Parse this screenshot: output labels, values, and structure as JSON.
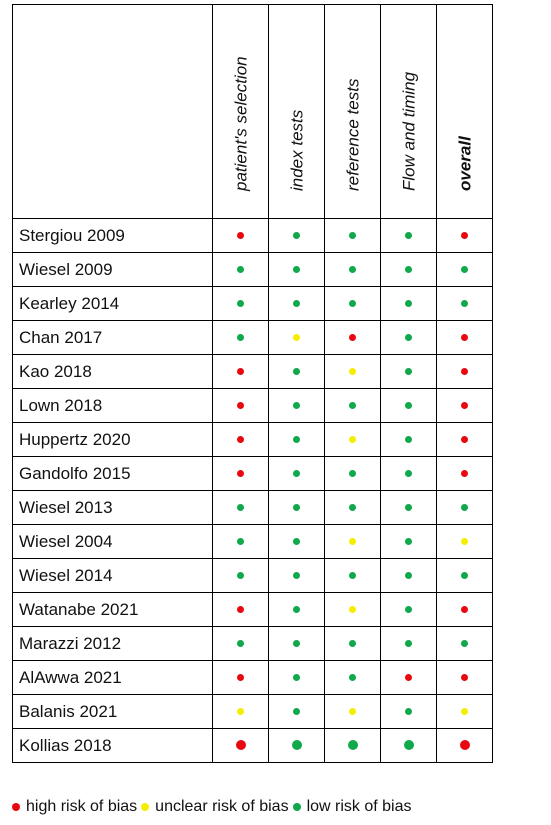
{
  "colors": {
    "high": "#e8090f",
    "unclear": "#f5ee00",
    "low": "#0fa84a"
  },
  "table": {
    "corner": "",
    "columns": [
      {
        "key": "patients_selection",
        "label": "patient's selection",
        "bold": false
      },
      {
        "key": "index_tests",
        "label": "index tests",
        "bold": false
      },
      {
        "key": "reference_tests",
        "label": "reference tests",
        "bold": false
      },
      {
        "key": "flow_timing",
        "label": "Flow and timing",
        "bold": false
      },
      {
        "key": "overall",
        "label": "overall",
        "bold": true
      }
    ],
    "rows": [
      {
        "study": "Stergiou 2009",
        "ratings": [
          "high",
          "low",
          "low",
          "low",
          "high"
        ]
      },
      {
        "study": "Wiesel 2009",
        "ratings": [
          "low",
          "low",
          "low",
          "low",
          "low"
        ]
      },
      {
        "study": "Kearley 2014",
        "ratings": [
          "low",
          "low",
          "low",
          "low",
          "low"
        ]
      },
      {
        "study": "Chan 2017",
        "ratings": [
          "low",
          "unclear",
          "high",
          "low",
          "high"
        ]
      },
      {
        "study": "Kao 2018",
        "ratings": [
          "high",
          "low",
          "unclear",
          "low",
          "high"
        ]
      },
      {
        "study": "Lown 2018",
        "ratings": [
          "high",
          "low",
          "low",
          "low",
          "high"
        ]
      },
      {
        "study": "Huppertz 2020",
        "ratings": [
          "high",
          "low",
          "unclear",
          "low",
          "high"
        ]
      },
      {
        "study": "Gandolfo 2015",
        "ratings": [
          "high",
          "low",
          "low",
          "low",
          "high"
        ]
      },
      {
        "study": "Wiesel 2013",
        "ratings": [
          "low",
          "low",
          "low",
          "low",
          "low"
        ]
      },
      {
        "study": "Wiesel 2004",
        "ratings": [
          "low",
          "low",
          "unclear",
          "low",
          "unclear"
        ]
      },
      {
        "study": "Wiesel 2014",
        "ratings": [
          "low",
          "low",
          "low",
          "low",
          "low"
        ]
      },
      {
        "study": "Watanabe 2021",
        "ratings": [
          "high",
          "low",
          "unclear",
          "low",
          "high"
        ]
      },
      {
        "study": "Marazzi 2012",
        "ratings": [
          "low",
          "low",
          "low",
          "low",
          "low"
        ]
      },
      {
        "study": "AlAwwa 2021",
        "ratings": [
          "high",
          "low",
          "low",
          "high",
          "high"
        ]
      },
      {
        "study": "Balanis 2021",
        "ratings": [
          "unclear",
          "low",
          "unclear",
          "low",
          "unclear"
        ]
      },
      {
        "study": "Kollias 2018",
        "ratings": [
          "high",
          "low",
          "low",
          "low",
          "high"
        ],
        "large_dots": true
      }
    ]
  },
  "legend": [
    {
      "rating": "high",
      "label": "high risk of bias"
    },
    {
      "rating": "unclear",
      "label": "unclear risk of bias"
    },
    {
      "rating": "low",
      "label": "low risk of bias"
    }
  ]
}
